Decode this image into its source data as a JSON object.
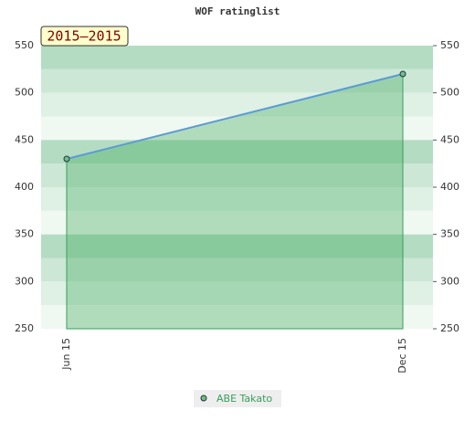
{
  "chart_data": {
    "type": "line",
    "title": "WOF ratinglist",
    "annotation": "2015–2015",
    "categories": [
      "Jun 15",
      "Dec 15"
    ],
    "series": [
      {
        "name": "ABE Takato",
        "color": "#5b9bd5",
        "values": [
          430,
          520
        ]
      }
    ],
    "ylim": [
      250,
      550
    ],
    "yticks": [
      250,
      300,
      350,
      400,
      450,
      500,
      550
    ]
  }
}
